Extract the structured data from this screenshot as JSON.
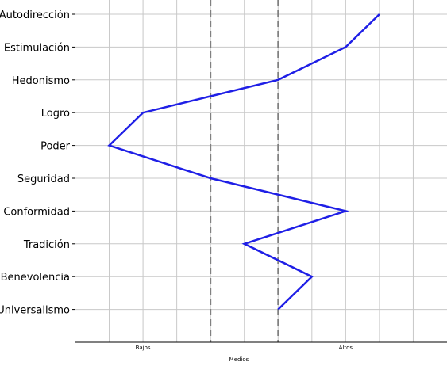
{
  "chart_data": {
    "type": "line",
    "orientation": "horizontal",
    "categories": [
      "Autodirección",
      "Estimulación",
      "Hedonismo",
      "Logro",
      "Poder",
      "Seguridad",
      "Conformidad",
      "Tradición",
      "Benevolencia",
      "Universalismo"
    ],
    "series": [
      {
        "values": [
          9,
          8,
          6,
          2,
          1,
          4,
          8,
          5,
          7,
          6
        ],
        "color": "#1f1fe6"
      }
    ],
    "x_ticks": [
      {
        "label": "Bajos",
        "value": 2
      },
      {
        "label": "Altos",
        "value": 8
      }
    ],
    "xlabel": "Medios",
    "xlim": [
      0,
      11
    ],
    "reference_lines": [
      4,
      6
    ],
    "grid": true,
    "grid_color": "#c8c8c8",
    "reference_line_color": "#808080"
  }
}
